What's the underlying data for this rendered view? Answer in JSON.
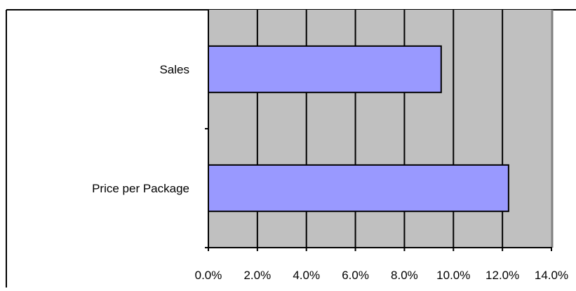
{
  "chart_data": {
    "type": "bar",
    "orientation": "horizontal",
    "categories": [
      "Sales",
      "Price per Package"
    ],
    "values": [
      0.095,
      0.1225
    ],
    "xlim": [
      0,
      0.14
    ],
    "x_tick_values": [
      0,
      0.02,
      0.04,
      0.06,
      0.08,
      0.1,
      0.12,
      0.14
    ],
    "x_tick_labels": [
      "0.0%",
      "2.0%",
      "4.0%",
      "6.0%",
      "8.0%",
      "10.0%",
      "12.0%",
      "14.0%"
    ],
    "title": "",
    "xlabel": "",
    "ylabel": "",
    "grid": "vertical",
    "legend": "none",
    "colors": {
      "bar_fill": "#9999ff",
      "bar_stroke": "#000000",
      "plot_background": "#c0c0c0",
      "gridline": "#000000",
      "page_background": "#ffffff",
      "right_border": "#808080"
    }
  }
}
